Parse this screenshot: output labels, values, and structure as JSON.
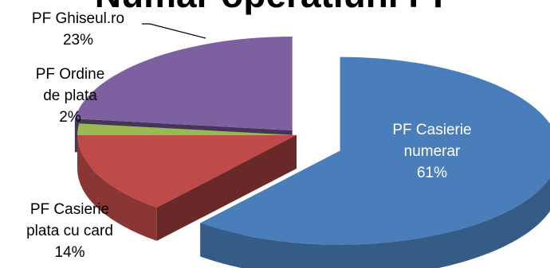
{
  "chart_data": {
    "type": "pie",
    "title": "Numar operatiuni PF",
    "three_d": true,
    "exploded": true,
    "categories": [
      "PF Casierie numerar",
      "PF Casierie plata cu card",
      "PF Ordine de plata",
      "PF Ghiseul.ro"
    ],
    "values": [
      61,
      14,
      2,
      23
    ],
    "value_format": "percent",
    "colors": [
      "#4a7ebb",
      "#be4b48",
      "#98b954",
      "#7d60a0"
    ],
    "labels": [
      {
        "lines": [
          "PF Casierie",
          "numerar",
          "61%"
        ],
        "color": "#ffffff",
        "placement": "inside"
      },
      {
        "lines": [
          "PF Casierie",
          "plata cu card",
          "14%"
        ],
        "color": "#000000",
        "placement": "outside"
      },
      {
        "lines": [
          "PF Ordine",
          "de plata",
          "2%"
        ],
        "color": "#000000",
        "placement": "outside"
      },
      {
        "lines": [
          "PF Ghiseul.ro",
          "23%"
        ],
        "color": "#000000",
        "placement": "outside-with-leader"
      }
    ]
  }
}
